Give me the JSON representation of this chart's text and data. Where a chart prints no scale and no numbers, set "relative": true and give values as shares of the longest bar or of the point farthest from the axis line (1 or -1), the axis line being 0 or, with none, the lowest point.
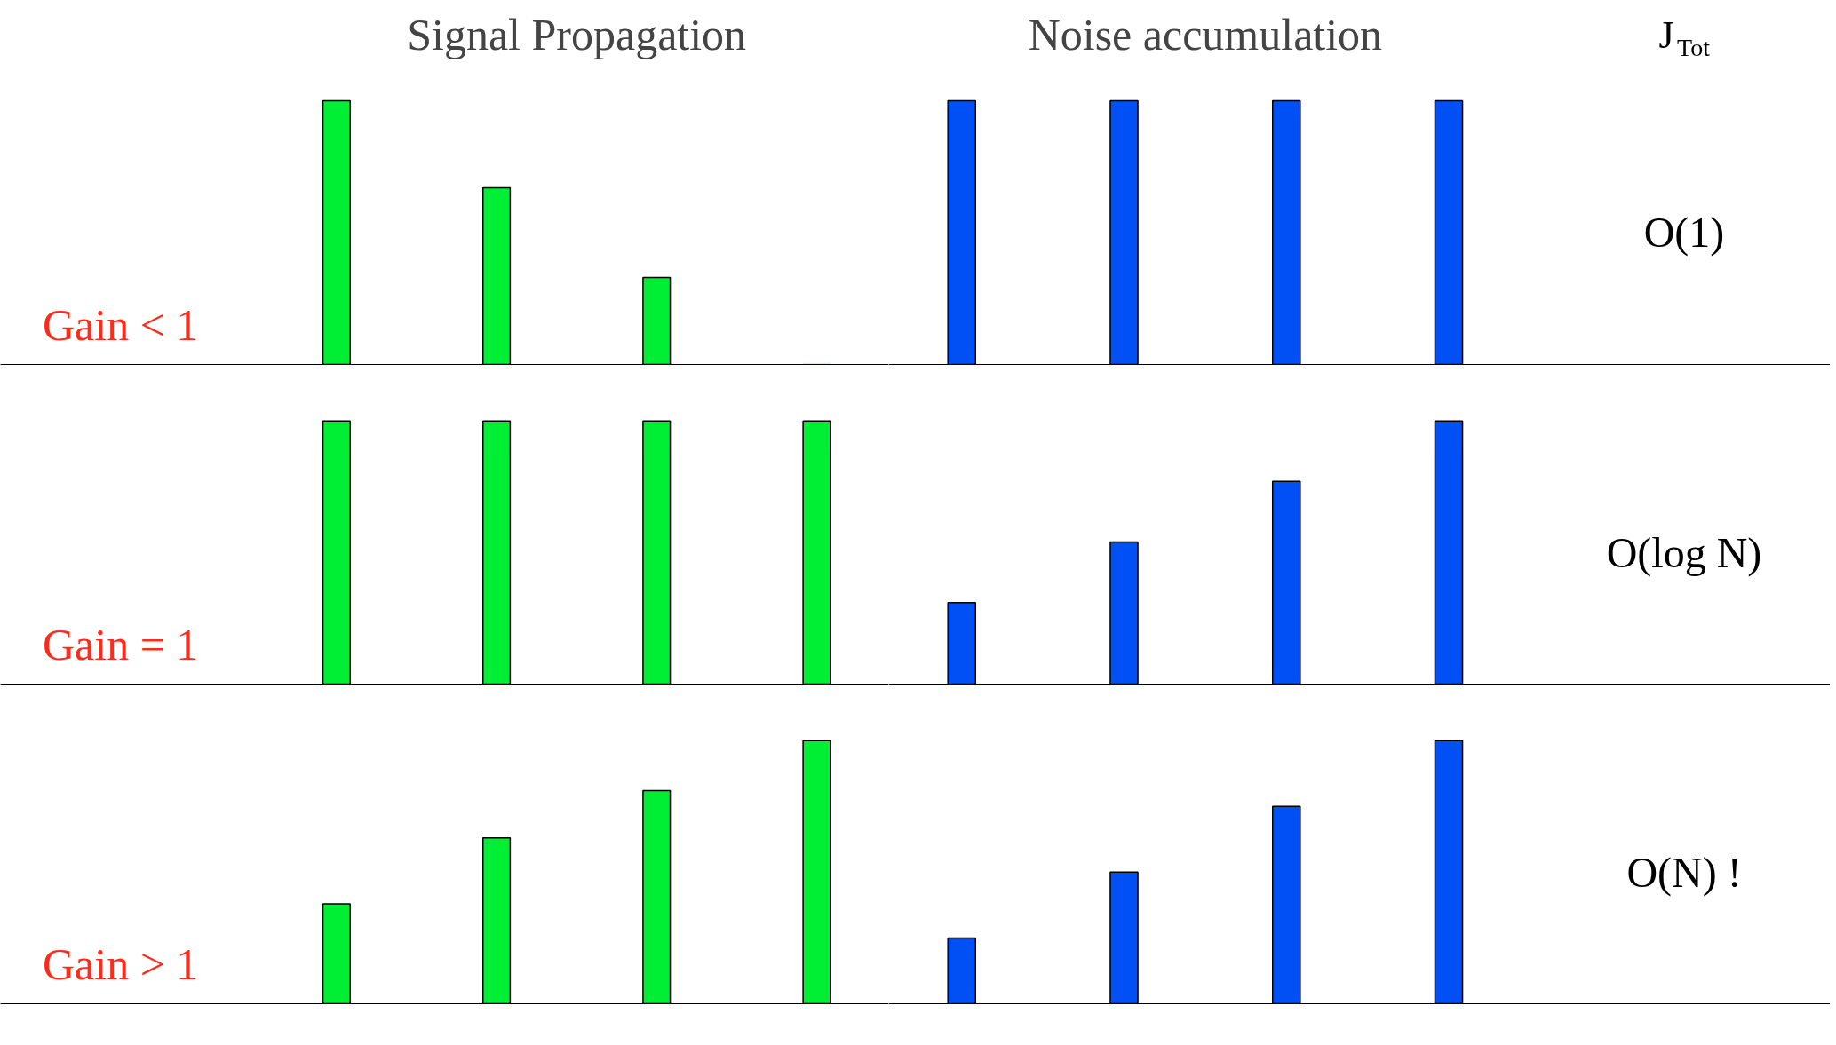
{
  "chart_data": [
    {
      "type": "bar",
      "title": "Signal Propagation",
      "categories": [
        null,
        null,
        null,
        null
      ],
      "values": [
        1,
        0.67,
        0.33,
        0
      ],
      "relative": true,
      "color": "#00ee33",
      "annotations": [
        "Gain < 1"
      ]
    },
    {
      "type": "bar",
      "title": "Noise accumulation",
      "categories": [
        null,
        null,
        null,
        null
      ],
      "values": [
        1,
        1,
        1,
        1
      ],
      "relative": true,
      "color": "#0050f5",
      "annotations": [
        "J$_{Tot}$",
        "O(1)"
      ]
    },
    {
      "type": "bar",
      "categories": [
        null,
        null,
        null,
        null
      ],
      "values": [
        1,
        1,
        1,
        1
      ],
      "relative": true,
      "color": "#00ee33",
      "annotations": [
        "Gain = 1"
      ]
    },
    {
      "type": "bar",
      "categories": [
        null,
        null,
        null,
        null
      ],
      "values": [
        0.31,
        0.54,
        0.77,
        1
      ],
      "relative": true,
      "color": "#0050f5",
      "annotations": [
        "O(log N)"
      ]
    },
    {
      "type": "bar",
      "categories": [
        null,
        null,
        null,
        null
      ],
      "values": [
        0.38,
        0.63,
        0.81,
        1
      ],
      "relative": true,
      "color": "#00ee33",
      "annotations": [
        "Gain > 1"
      ]
    },
    {
      "type": "bar",
      "categories": [
        null,
        null,
        null,
        null
      ],
      "values": [
        0.25,
        0.5,
        0.75,
        1
      ],
      "relative": true,
      "color": "#0050f5",
      "annotations": [
        "O(N) !"
      ]
    }
  ]
}
